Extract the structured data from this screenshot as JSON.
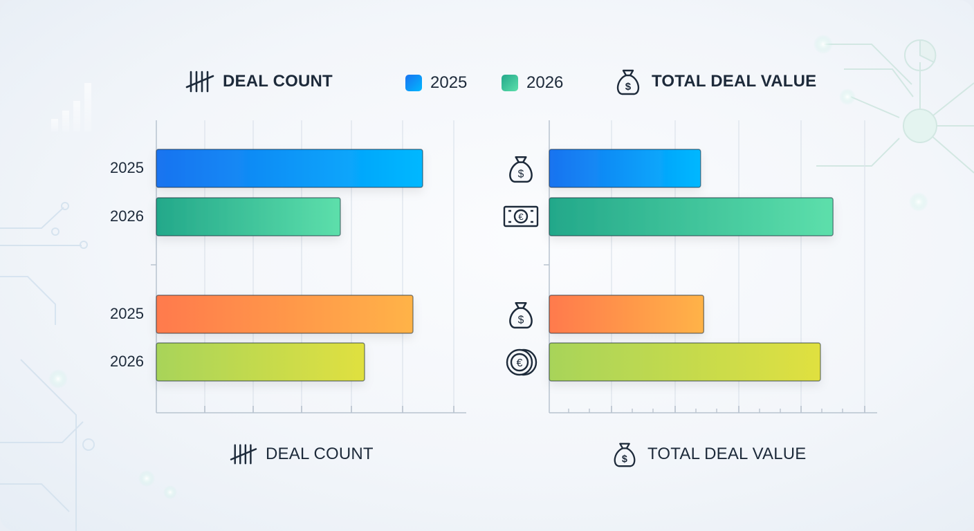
{
  "header": {
    "deal_count_label": "DEAL COUNT",
    "total_deal_value_label": "TOTAL DEAL VALUE"
  },
  "footer": {
    "deal_count_label": "DEAL COUNT",
    "total_deal_value_label": "TOTAL DEAL VALUE"
  },
  "legend": [
    {
      "label": "2025",
      "color": "#1e88f5"
    },
    {
      "label": "2026",
      "color": "#34c196"
    }
  ],
  "icons": {
    "deal_count": "tally-marks-icon",
    "total_deal_value": "money-bag-icon",
    "row_icons": [
      "money-bag-icon",
      "euro-banknote-icon",
      "money-bag-icon",
      "euro-coins-icon"
    ]
  },
  "chart_data": {
    "type": "bar",
    "orientation": "horizontal",
    "groups": [
      {
        "rows": [
          {
            "label": "2025",
            "deal_count": 5.5,
            "total_deal_value": 2.4,
            "colors": [
              "#1a73f0",
              "#00b8ff"
            ]
          },
          {
            "label": "2026",
            "deal_count": 3.8,
            "total_deal_value": 4.5,
            "colors": [
              "#23a88a",
              "#5ddfab"
            ]
          }
        ]
      },
      {
        "rows": [
          {
            "label": "2025",
            "deal_count": 5.3,
            "total_deal_value": 2.45,
            "colors": [
              "#ff7a4d",
              "#ffb347"
            ]
          },
          {
            "label": "2026",
            "deal_count": 4.3,
            "total_deal_value": 4.3,
            "colors": [
              "#a8d45a",
              "#e0e040"
            ]
          }
        ]
      }
    ],
    "panels": [
      {
        "metric": "deal_count",
        "xlim": [
          0,
          6.4
        ],
        "grid": true
      },
      {
        "metric": "total_deal_value",
        "xlim": [
          0,
          5.2
        ],
        "grid": true
      }
    ],
    "xlabel": "",
    "ylabel": ""
  }
}
